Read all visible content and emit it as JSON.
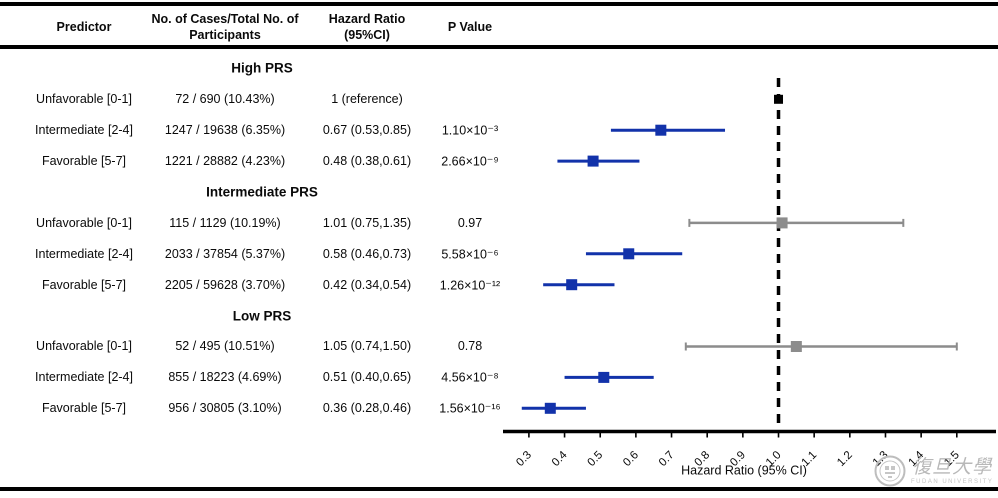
{
  "table": {
    "headers": {
      "predictor": "Predictor",
      "cases": "No. of Cases/Total No. of Participants",
      "hazard_ratio": "Hazard Ratio (95%CI)",
      "p_value": "P Value"
    },
    "sections": [
      {
        "title": "High PRS",
        "rows": [
          {
            "predictor": "Unfavorable [0-1]",
            "cases": "72 / 690 (10.43%)",
            "hr_text": "1 (reference)",
            "p": ""
          },
          {
            "predictor": "Intermediate [2-4]",
            "cases": "1247 / 19638 (6.35%)",
            "hr_text": "0.67 (0.53,0.85)",
            "p": "1.10×10⁻³"
          },
          {
            "predictor": "Favorable [5-7]",
            "cases": "1221 / 28882 (4.23%)",
            "hr_text": "0.48 (0.38,0.61)",
            "p": "2.66×10⁻⁹"
          }
        ]
      },
      {
        "title": "Intermediate PRS",
        "rows": [
          {
            "predictor": "Unfavorable [0-1]",
            "cases": "115 / 1129 (10.19%)",
            "hr_text": "1.01 (0.75,1.35)",
            "p": "0.97"
          },
          {
            "predictor": "Intermediate [2-4]",
            "cases": "2033 / 37854 (5.37%)",
            "hr_text": "0.58 (0.46,0.73)",
            "p": "5.58×10⁻⁶"
          },
          {
            "predictor": "Favorable [5-7]",
            "cases": "2205 / 59628 (3.70%)",
            "hr_text": "0.42 (0.34,0.54)",
            "p": "1.26×10⁻¹²"
          }
        ]
      },
      {
        "title": "Low PRS",
        "rows": [
          {
            "predictor": "Unfavorable [0-1]",
            "cases": "52 / 495 (10.51%)",
            "hr_text": "1.05 (0.74,1.50)",
            "p": "0.78"
          },
          {
            "predictor": "Intermediate [2-4]",
            "cases": "855 / 18223 (4.69%)",
            "hr_text": "0.51 (0.40,0.65)",
            "p": "4.56×10⁻⁸"
          },
          {
            "predictor": "Favorable [5-7]",
            "cases": "956 / 30805 (3.10%)",
            "hr_text": "0.36 (0.28,0.46)",
            "p": "1.56×10⁻¹⁶"
          }
        ]
      }
    ]
  },
  "chart_data": {
    "type": "forest",
    "xlabel": "Hazard Ratio (95% CI)",
    "axis": {
      "min": 0.3,
      "max": 1.5,
      "tick_labels": [
        "0.3",
        "0.4",
        "0.5",
        "0.6",
        "0.7",
        "0.8",
        "0.9",
        "1.0",
        "1.1",
        "1.2",
        "1.3",
        "1.4",
        "1.5"
      ],
      "reference_line": 1.0,
      "grid": false
    },
    "colors": {
      "blue": "#1232aa",
      "gray": "#8c8c8c",
      "reference": "#000000"
    },
    "rows": [
      {
        "group": "High PRS",
        "predictor": "Unfavorable [0-1]",
        "hr": 1.0,
        "lo": 1.0,
        "hi": 1.0,
        "style": "reference",
        "row": 1
      },
      {
        "group": "High PRS",
        "predictor": "Intermediate [2-4]",
        "hr": 0.67,
        "lo": 0.53,
        "hi": 0.85,
        "style": "blue",
        "row": 2
      },
      {
        "group": "High PRS",
        "predictor": "Favorable [5-7]",
        "hr": 0.48,
        "lo": 0.38,
        "hi": 0.61,
        "style": "blue",
        "row": 3
      },
      {
        "group": "Intermediate PRS",
        "predictor": "Unfavorable [0-1]",
        "hr": 1.01,
        "lo": 0.75,
        "hi": 1.35,
        "style": "gray",
        "row": 5
      },
      {
        "group": "Intermediate PRS",
        "predictor": "Intermediate [2-4]",
        "hr": 0.58,
        "lo": 0.46,
        "hi": 0.73,
        "style": "blue",
        "row": 6
      },
      {
        "group": "Intermediate PRS",
        "predictor": "Favorable [5-7]",
        "hr": 0.42,
        "lo": 0.34,
        "hi": 0.54,
        "style": "blue",
        "row": 7
      },
      {
        "group": "Low PRS",
        "predictor": "Unfavorable [0-1]",
        "hr": 1.05,
        "lo": 0.74,
        "hi": 1.5,
        "style": "gray",
        "row": 9
      },
      {
        "group": "Low PRS",
        "predictor": "Intermediate [2-4]",
        "hr": 0.51,
        "lo": 0.4,
        "hi": 0.65,
        "style": "blue",
        "row": 10
      },
      {
        "group": "Low PRS",
        "predictor": "Favorable [5-7]",
        "hr": 0.36,
        "lo": 0.28,
        "hi": 0.46,
        "style": "blue",
        "row": 11
      }
    ]
  },
  "watermark": {
    "university_name": "復旦大學",
    "university_name_en": "FUDAN UNIVERSITY"
  }
}
